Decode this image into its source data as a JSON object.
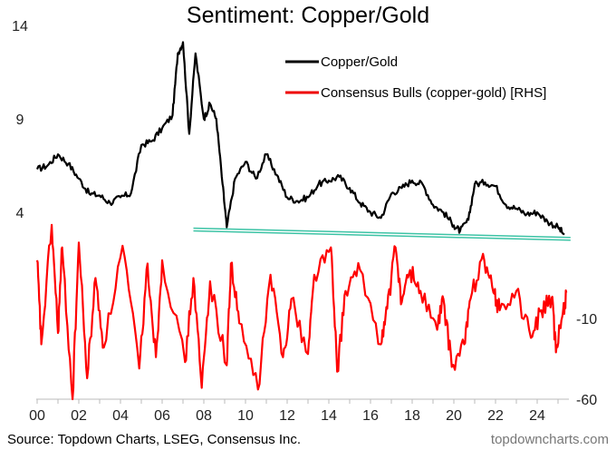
{
  "chart_data": {
    "type": "line",
    "title": "Sentiment: Copper/Gold",
    "source": "Source: Topdown Charts, LSEG, Consensus Inc.",
    "watermark": "topdowncharts.com",
    "x_ticks": [
      "00",
      "02",
      "04",
      "06",
      "08",
      "10",
      "12",
      "14",
      "16",
      "18",
      "20",
      "22",
      "24"
    ],
    "x_tick_years": [
      2000,
      2002,
      2004,
      2006,
      2008,
      2010,
      2012,
      2014,
      2016,
      2018,
      2020,
      2022,
      2024
    ],
    "xlim": [
      2000,
      2025.6
    ],
    "left_axis": {
      "ticks": [
        "14",
        "9",
        "4"
      ],
      "tick_values": [
        14,
        9,
        4
      ],
      "ylim": [
        0.5,
        14
      ]
    },
    "right_axis": {
      "ticks": [
        "-10",
        "-60"
      ],
      "tick_values": [
        -10,
        -60
      ],
      "ylim": [
        -60,
        50
      ]
    },
    "legend": {
      "placement": "top-right",
      "entries": [
        "Copper/Gold",
        "Consensus Bulls (copper-gold) [RHS]"
      ]
    },
    "series": [
      {
        "name": "Copper/Gold",
        "axis": "left",
        "color": "#000000",
        "x": [
          2000,
          2000.5,
          2001,
          2001.5,
          2002,
          2002.5,
          2003,
          2003.5,
          2004,
          2004.5,
          2005,
          2005.5,
          2006,
          2006.5,
          2006.75,
          2007,
          2007.3,
          2007.6,
          2008,
          2008.3,
          2008.6,
          2008.9,
          2009.1,
          2009.5,
          2010,
          2010.5,
          2011,
          2011.5,
          2012,
          2012.5,
          2013,
          2013.5,
          2014,
          2014.5,
          2015,
          2015.5,
          2016,
          2016.5,
          2017,
          2017.5,
          2018,
          2018.5,
          2019,
          2019.5,
          2020,
          2020.3,
          2020.7,
          2021,
          2021.5,
          2022,
          2022.5,
          2023,
          2023.5,
          2024,
          2024.5,
          2025,
          2025.3
        ],
        "y": [
          6.3,
          6.5,
          7.1,
          6.6,
          5.8,
          5.0,
          4.9,
          4.5,
          4.8,
          5.0,
          7.6,
          7.8,
          8.5,
          9.2,
          12.5,
          13.1,
          8.2,
          12.5,
          9.0,
          9.8,
          9.0,
          5.5,
          3.2,
          5.8,
          6.7,
          5.8,
          7.1,
          6.0,
          4.8,
          4.6,
          4.8,
          5.5,
          5.7,
          5.9,
          5.3,
          4.5,
          4.0,
          3.7,
          5.0,
          5.3,
          5.7,
          5.5,
          4.4,
          4.0,
          3.3,
          3.0,
          3.6,
          5.5,
          5.6,
          5.4,
          4.4,
          4.2,
          3.9,
          4.0,
          3.5,
          3.2,
          2.8
        ]
      },
      {
        "name": "Consensus Bulls (copper-gold) [RHS]",
        "axis": "right",
        "color": "#ff0000",
        "x": [
          2000,
          2000.2,
          2000.7,
          2001,
          2001.2,
          2001.7,
          2002,
          2002.4,
          2002.8,
          2003.2,
          2004.1,
          2004.9,
          2005.3,
          2005.7,
          2006,
          2007.1,
          2007.5,
          2007.9,
          2008.3,
          2009.1,
          2009.3,
          2009.7,
          2010.6,
          2011.2,
          2011.8,
          2012.2,
          2013.0,
          2013.3,
          2014.1,
          2014.4,
          2014.8,
          2015.5,
          2016.5,
          2016.8,
          2017.2,
          2017.5,
          2017.9,
          2018.4,
          2019.2,
          2019.5,
          2019.9,
          2020.5,
          2020.8,
          2021.4,
          2021.9,
          2022.2,
          2023,
          2023.7,
          2024.2,
          2024.7,
          2024.9,
          2025.2,
          2025.4
        ],
        "y": [
          26,
          -26,
          48,
          -19,
          34,
          -60,
          37,
          -47,
          15,
          -28,
          35,
          -41,
          24,
          -34,
          26,
          -37,
          15,
          -53,
          13,
          -39,
          24,
          -13,
          -54,
          17,
          -34,
          2,
          -32,
          17,
          34,
          -43,
          7,
          20,
          -26,
          -4,
          34,
          0,
          20,
          7,
          -17,
          2,
          -40,
          -26,
          2,
          30,
          6,
          -5,
          7,
          -22,
          -5,
          3,
          -31,
          -9,
          6
        ]
      }
    ],
    "annotations": [
      {
        "type": "support-line",
        "color": "#3cc3a5",
        "from": [
          2007.5,
          3.15
        ],
        "to": [
          2025.6,
          2.65
        ]
      }
    ]
  }
}
